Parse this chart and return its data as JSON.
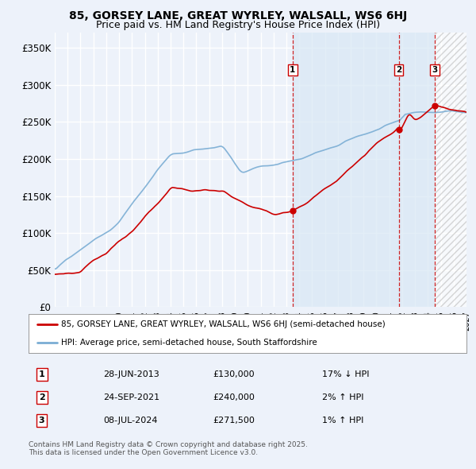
{
  "title": "85, GORSEY LANE, GREAT WYRLEY, WALSALL, WS6 6HJ",
  "subtitle": "Price paid vs. HM Land Registry's House Price Index (HPI)",
  "ylim": [
    0,
    370000
  ],
  "yticks": [
    0,
    50000,
    100000,
    150000,
    200000,
    250000,
    300000,
    350000
  ],
  "ytick_labels": [
    "£0",
    "£50K",
    "£100K",
    "£150K",
    "£200K",
    "£250K",
    "£300K",
    "£350K"
  ],
  "xlim_start": 1995.0,
  "xlim_end": 2027.0,
  "background_color": "#edf2fa",
  "plot_bg_color": "#edf2fa",
  "grid_color": "#ffffff",
  "legend_label_red": "85, GORSEY LANE, GREAT WYRLEY, WALSALL, WS6 6HJ (semi-detached house)",
  "legend_label_blue": "HPI: Average price, semi-detached house, South Staffordshire",
  "red_color": "#cc0000",
  "blue_color": "#7aadd4",
  "sale_dates": [
    2013.49,
    2021.73,
    2024.52
  ],
  "sale_prices": [
    130000,
    240000,
    271500
  ],
  "vline_color": "#cc0000",
  "table_data": [
    [
      "1",
      "28-JUN-2013",
      "£130,000",
      "17% ↓ HPI"
    ],
    [
      "2",
      "24-SEP-2021",
      "£240,000",
      "2% ↑ HPI"
    ],
    [
      "3",
      "08-JUL-2024",
      "£271,500",
      "1% ↑ HPI"
    ]
  ],
  "footer_text": "Contains HM Land Registry data © Crown copyright and database right 2025.\nThis data is licensed under the Open Government Licence v3.0.",
  "hatch_start": 2024.52,
  "hatch_end": 2027.0,
  "sale_between_fill_start": 2013.49,
  "sale_between_fill_end": 2024.52
}
